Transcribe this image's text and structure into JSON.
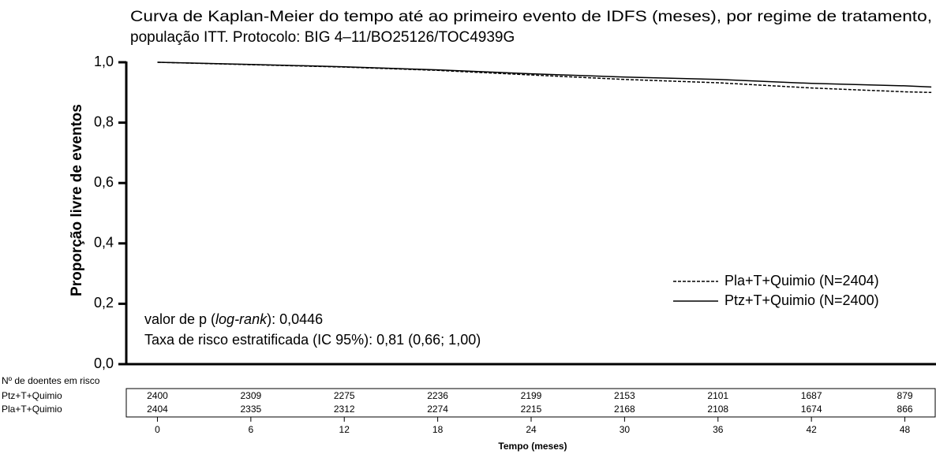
{
  "chart_data": {
    "type": "line",
    "title": [
      "Curva de Kaplan-Meier  do tempo até ao primeiro evento de IDFS (meses), por regime de tratamento,",
      "população ITT. Protocolo: BIG 4–11/BO25126/TOC4939G"
    ],
    "y_label": "Proporção livre de eventos",
    "x_label": "Tempo (meses)",
    "xlim": [
      -2,
      50
    ],
    "ylim": [
      0,
      1
    ],
    "xticks": [
      0,
      6,
      12,
      18,
      24,
      30,
      36,
      42,
      48
    ],
    "yticks": [
      {
        "value": 0,
        "label": "0,0"
      },
      {
        "value": 0.2,
        "label": "0,2"
      },
      {
        "value": 0.4,
        "label": "0,4"
      },
      {
        "value": 0.6,
        "label": "0,6"
      },
      {
        "value": 0.8,
        "label": "0,8"
      },
      {
        "value": 1,
        "label": "1,0"
      }
    ],
    "series": [
      {
        "name": "Pla+T+Quimio (N=2404)",
        "color": "#000000",
        "dash": true,
        "x": [
          0,
          6,
          12,
          18,
          24,
          30,
          36,
          42,
          48,
          49.7
        ],
        "values": [
          1.0,
          0.992,
          0.984,
          0.973,
          0.958,
          0.943,
          0.932,
          0.915,
          0.902,
          0.9
        ]
      },
      {
        "name": "Ptz+T+Quimio (N=2400)",
        "color": "#000000",
        "dash": false,
        "x": [
          0,
          6,
          12,
          18,
          24,
          30,
          36,
          42,
          48,
          49.7
        ],
        "values": [
          1.0,
          0.993,
          0.985,
          0.975,
          0.962,
          0.951,
          0.943,
          0.93,
          0.922,
          0.918
        ]
      }
    ],
    "annotations": [
      [
        "valor de p (",
        "log-rank",
        "):  0,0446"
      ],
      [
        "Taxa de risco estratificada (IC 95%): 0,81 (0,66; 1,00)"
      ]
    ],
    "risk_table": {
      "label": "Nº de doentes em risco",
      "rows": [
        {
          "name": "Ptz+T+Quimio",
          "values": [
            2400,
            2309,
            2275,
            2236,
            2199,
            2153,
            2101,
            1687,
            879
          ]
        },
        {
          "name": "Pla+T+Quimio",
          "values": [
            2404,
            2335,
            2312,
            2274,
            2215,
            2168,
            2108,
            1674,
            866
          ]
        }
      ]
    }
  }
}
